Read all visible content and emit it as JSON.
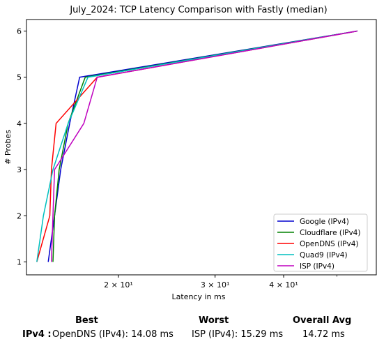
{
  "chart_data": {
    "type": "line",
    "title": "July_2024: TCP Latency Comparison with Fastly (median)",
    "xlabel": "Latency in ms",
    "ylabel": "# Probes",
    "x_scale": "log",
    "xlim": [
      13.6,
      59.0
    ],
    "ylim": [
      0.72,
      6.25
    ],
    "y_ticks": [
      1,
      2,
      3,
      4,
      5,
      6
    ],
    "x_ticks": [
      {
        "value": 20,
        "label": "2 × 10¹"
      },
      {
        "value": 30,
        "label": "3 × 10¹"
      },
      {
        "value": 40,
        "label": "4 × 10¹"
      }
    ],
    "grid": false,
    "legend_position": "lower-right",
    "series": [
      {
        "name": "Google (IPv4)",
        "color": "#0000cd",
        "x": [
          14.9,
          15.3,
          15.7,
          16.3,
          17.0,
          54.5
        ],
        "y": [
          1,
          2,
          3,
          4,
          5,
          6
        ]
      },
      {
        "name": "Cloudflare (IPv4)",
        "color": "#008000",
        "x": [
          15.2,
          15.3,
          15.6,
          16.2,
          17.4,
          54.5
        ],
        "y": [
          1,
          2,
          3,
          4,
          5,
          6
        ]
      },
      {
        "name": "OpenDNS (IPv4)",
        "color": "#ff0000",
        "x": [
          14.2,
          15.0,
          15.1,
          15.4,
          18.3,
          54.5
        ],
        "y": [
          1,
          2,
          3,
          4,
          5,
          6
        ]
      },
      {
        "name": "Quad9 (IPv4)",
        "color": "#00bfbf",
        "x": [
          14.2,
          14.6,
          15.2,
          16.2,
          17.6,
          54.5
        ],
        "y": [
          1,
          2,
          3,
          4,
          5,
          6
        ]
      },
      {
        "name": "ISP (IPv4)",
        "color": "#bf00bf",
        "x": [
          15.1,
          15.2,
          15.3,
          17.3,
          18.3,
          54.5
        ],
        "y": [
          1,
          2,
          3,
          4,
          5,
          6
        ]
      }
    ]
  },
  "summary": {
    "headers": {
      "best": "Best",
      "worst": "Worst",
      "avg": "Overall Avg"
    },
    "row": {
      "label": "IPv4 :",
      "best": "OpenDNS (IPv4): 14.08 ms",
      "worst": "ISP (IPv4): 15.29 ms",
      "avg": "14.72 ms"
    }
  }
}
